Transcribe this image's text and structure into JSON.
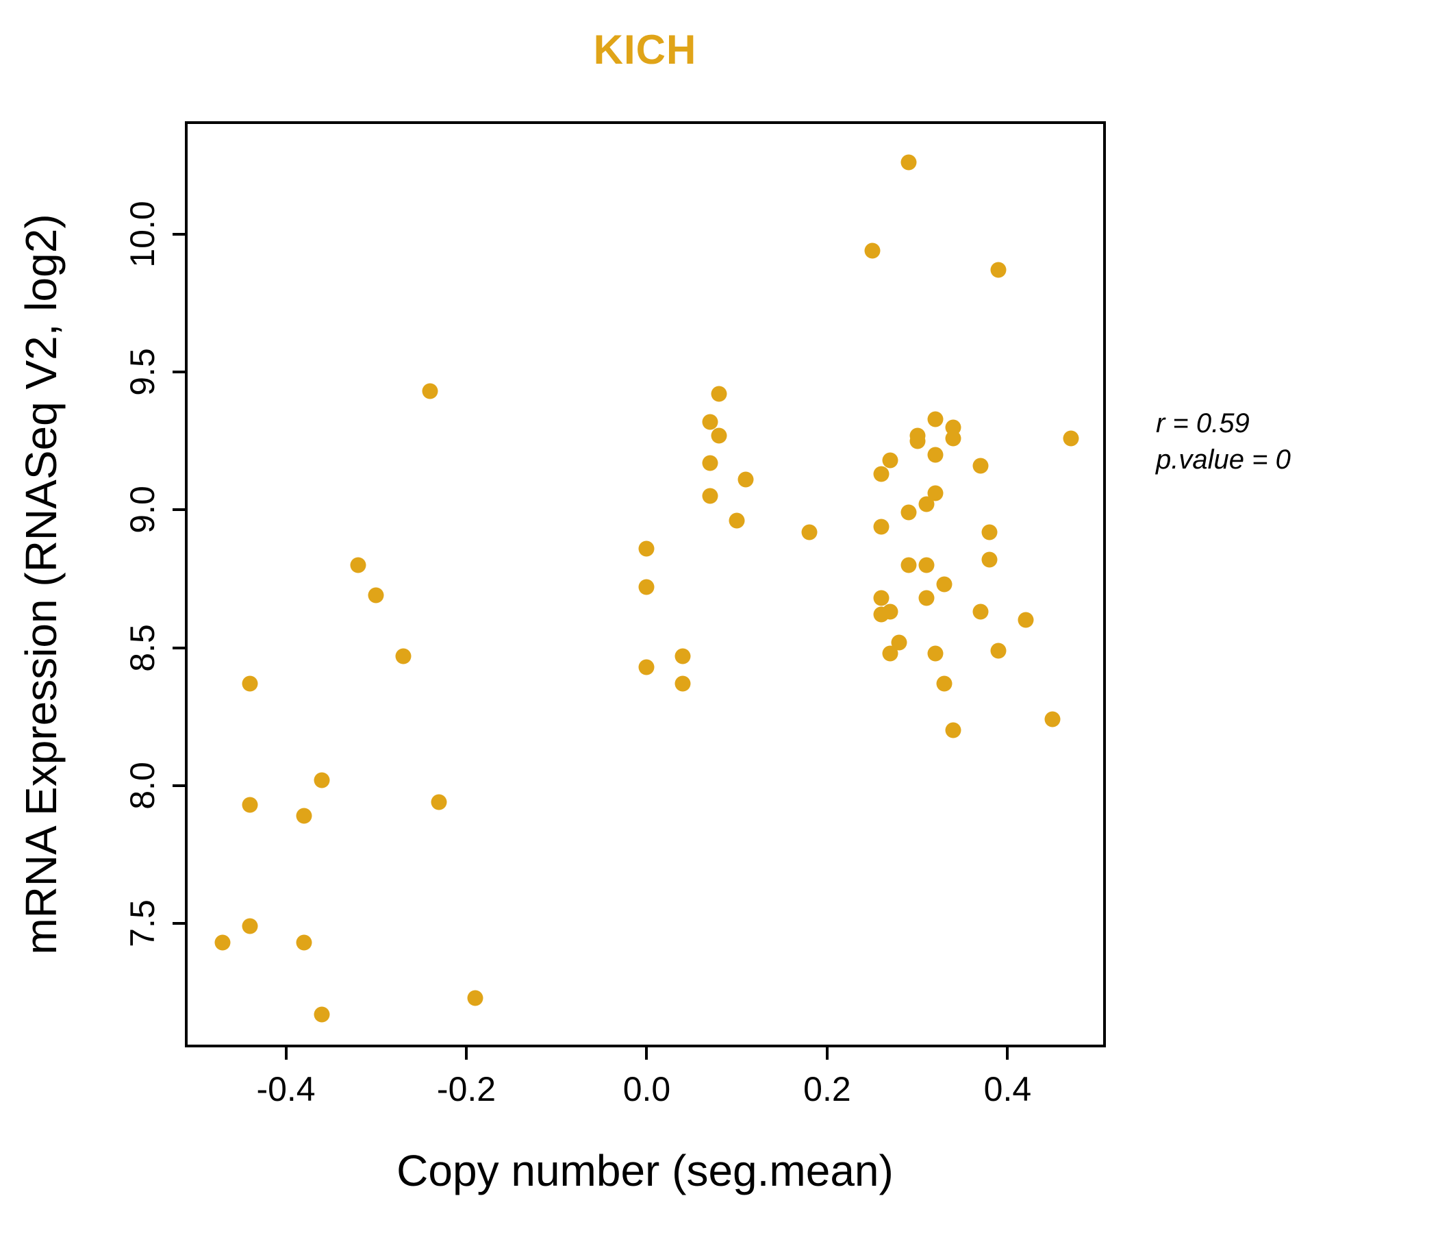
{
  "title": {
    "text": "KICH",
    "color": "#E0A418"
  },
  "x_axis": {
    "label": "Copy number (seg.mean)",
    "ticks": [
      -0.4,
      -0.2,
      0.0,
      0.2,
      0.4
    ],
    "tick_labels": [
      "-0.4",
      "-0.2",
      "0.0",
      "0.2",
      "0.4"
    ]
  },
  "y_axis": {
    "label": "mRNA Expression (RNASeq V2, log2)",
    "ticks": [
      7.5,
      8.0,
      8.5,
      9.0,
      9.5,
      10.0
    ],
    "tick_labels": [
      "7.5",
      "8.0",
      "8.5",
      "9.0",
      "9.5",
      "10.0"
    ]
  },
  "annotation": {
    "r_line": "r = 0.59",
    "p_line": "p.value = 0"
  },
  "chart_data": {
    "type": "scatter",
    "title": "KICH",
    "xlabel": "Copy number (seg.mean)",
    "ylabel": "mRNA Expression (RNASeq V2, log2)",
    "xlim": [
      -0.512,
      0.509
    ],
    "ylim": [
      7.05,
      10.41
    ],
    "grid": false,
    "legend_position": "none",
    "point_color": "#E0A418",
    "correlation_r": 0.59,
    "p_value": 0,
    "points": [
      [
        -0.47,
        7.43
      ],
      [
        -0.44,
        7.49
      ],
      [
        -0.44,
        7.93
      ],
      [
        -0.44,
        8.37
      ],
      [
        -0.38,
        7.43
      ],
      [
        -0.38,
        7.89
      ],
      [
        -0.36,
        7.17
      ],
      [
        -0.36,
        8.02
      ],
      [
        -0.32,
        8.8
      ],
      [
        -0.3,
        8.69
      ],
      [
        -0.27,
        8.47
      ],
      [
        -0.24,
        9.43
      ],
      [
        -0.23,
        7.94
      ],
      [
        -0.19,
        7.23
      ],
      [
        0.0,
        8.86
      ],
      [
        0.0,
        8.72
      ],
      [
        0.0,
        8.43
      ],
      [
        0.04,
        8.47
      ],
      [
        0.04,
        8.37
      ],
      [
        0.07,
        9.32
      ],
      [
        0.07,
        9.17
      ],
      [
        0.07,
        9.05
      ],
      [
        0.08,
        9.42
      ],
      [
        0.08,
        9.27
      ],
      [
        0.1,
        8.96
      ],
      [
        0.11,
        9.11
      ],
      [
        0.18,
        8.92
      ],
      [
        0.25,
        9.94
      ],
      [
        0.29,
        10.26
      ],
      [
        0.39,
        9.87
      ],
      [
        0.47,
        9.26
      ],
      [
        0.32,
        9.33
      ],
      [
        0.3,
        9.27
      ],
      [
        0.3,
        9.25
      ],
      [
        0.34,
        9.3
      ],
      [
        0.34,
        9.26
      ],
      [
        0.32,
        9.2
      ],
      [
        0.27,
        9.18
      ],
      [
        0.26,
        9.13
      ],
      [
        0.37,
        9.16
      ],
      [
        0.32,
        9.06
      ],
      [
        0.31,
        9.02
      ],
      [
        0.29,
        8.99
      ],
      [
        0.26,
        8.94
      ],
      [
        0.38,
        8.92
      ],
      [
        0.38,
        8.82
      ],
      [
        0.29,
        8.8
      ],
      [
        0.31,
        8.8
      ],
      [
        0.33,
        8.73
      ],
      [
        0.26,
        8.68
      ],
      [
        0.31,
        8.68
      ],
      [
        0.26,
        8.62
      ],
      [
        0.27,
        8.63
      ],
      [
        0.37,
        8.63
      ],
      [
        0.42,
        8.6
      ],
      [
        0.28,
        8.52
      ],
      [
        0.27,
        8.48
      ],
      [
        0.32,
        8.48
      ],
      [
        0.39,
        8.49
      ],
      [
        0.33,
        8.37
      ],
      [
        0.34,
        8.2
      ],
      [
        0.45,
        8.24
      ]
    ]
  }
}
